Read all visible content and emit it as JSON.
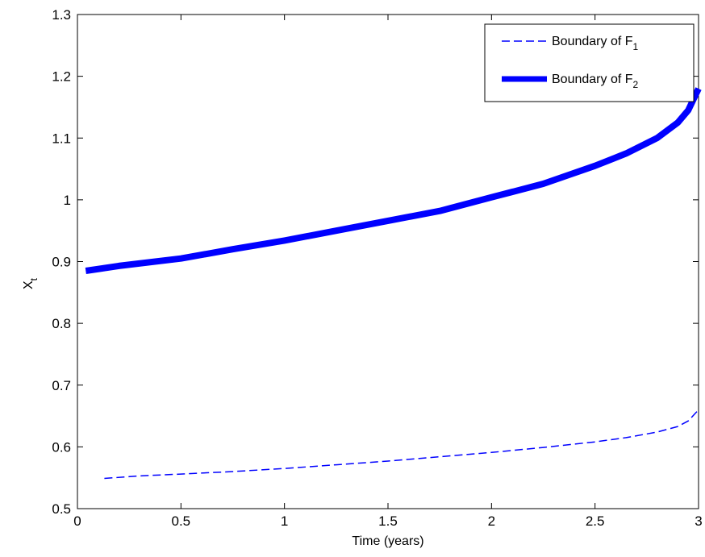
{
  "chart_data": {
    "type": "line",
    "xlabel": "Time (years)",
    "ylabel": {
      "base": "X",
      "sub": "t"
    },
    "xlim": [
      0,
      3
    ],
    "ylim": [
      0.5,
      1.3
    ],
    "xticks": [
      0,
      0.5,
      1,
      1.5,
      2,
      2.5,
      3
    ],
    "xtick_labels": [
      "0",
      "0.5",
      "1",
      "1.5",
      "2",
      "2.5",
      "3"
    ],
    "yticks": [
      0.5,
      0.6,
      0.7,
      0.8,
      0.9,
      1.0,
      1.1,
      1.2,
      1.3
    ],
    "ytick_labels": [
      "0.5",
      "0.6",
      "0.7",
      "0.8",
      "0.9",
      "1",
      "1.1",
      "1.2",
      "1.3"
    ],
    "grid": false,
    "legend_position": "top-right",
    "series": [
      {
        "name": {
          "base": "Boundary of F",
          "sub": "1"
        },
        "style": "dashed",
        "color": "#0000ff",
        "x": [
          0.13,
          0.3,
          0.5,
          0.75,
          1.0,
          1.25,
          1.5,
          1.75,
          2.0,
          2.25,
          2.5,
          2.65,
          2.8,
          2.9,
          2.95,
          3.0
        ],
        "y": [
          0.549,
          0.553,
          0.556,
          0.56,
          0.565,
          0.571,
          0.577,
          0.584,
          0.591,
          0.599,
          0.608,
          0.615,
          0.624,
          0.633,
          0.642,
          0.66
        ]
      },
      {
        "name": {
          "base": "Boundary of F",
          "sub": "2"
        },
        "style": "thick",
        "color": "#0000ff",
        "x": [
          0.04,
          0.2,
          0.5,
          0.75,
          1.0,
          1.25,
          1.5,
          1.75,
          2.0,
          2.25,
          2.5,
          2.65,
          2.8,
          2.9,
          2.95,
          3.0
        ],
        "y": [
          0.885,
          0.893,
          0.905,
          0.92,
          0.934,
          0.95,
          0.966,
          0.982,
          1.004,
          1.026,
          1.055,
          1.075,
          1.1,
          1.125,
          1.145,
          1.18
        ]
      }
    ]
  }
}
